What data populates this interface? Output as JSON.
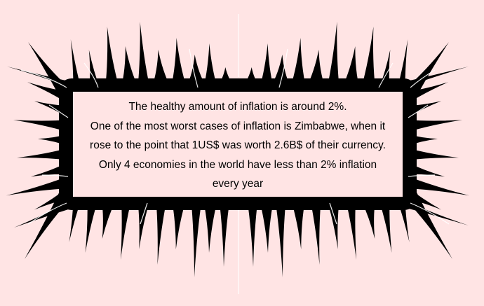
{
  "info_card": {
    "lines": [
      "The healthy amount of inflation is around 2%.",
      "One of the most worst cases of inflation is Zimbabwe, when it",
      "rose to the point that 1US$ was worth 2.6B$ of their currency.",
      "Only 4 economies in the world have less than 2% inflation",
      "every year"
    ]
  },
  "colors": {
    "background": "#ffe4e4",
    "frame": "#000000",
    "text": "#000000"
  },
  "decoration": {
    "frame_icon": "spiky-gothic-frame-icon"
  }
}
